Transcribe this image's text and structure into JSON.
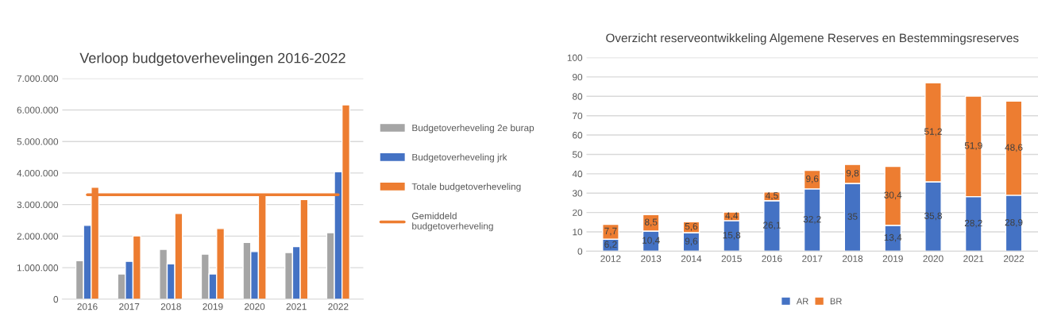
{
  "chart_data": [
    {
      "type": "bar",
      "title": "Verloop budgetoverhevelingen 2016-2022",
      "categories": [
        "2016",
        "2017",
        "2018",
        "2019",
        "2020",
        "2021",
        "2022"
      ],
      "series": [
        {
          "name": "Budgetoverheveling 2e burap",
          "color": "#a5a5a5",
          "values": [
            1220000,
            800000,
            1580000,
            1430000,
            1800000,
            1480000,
            2110000
          ]
        },
        {
          "name": "Budgetoverheveling jrk",
          "color": "#4472c4",
          "values": [
            2340000,
            1200000,
            1120000,
            800000,
            1510000,
            1670000,
            4040000
          ]
        },
        {
          "name": "Totale budgetoverheveling",
          "color": "#ed7d31",
          "values": [
            3550000,
            2010000,
            2720000,
            2240000,
            3320000,
            3160000,
            6160000
          ]
        },
        {
          "name": "Gemiddeld budgetoverheveling",
          "type": "line",
          "color": "#ed7d31",
          "values": [
            3310000,
            3310000,
            3310000,
            3310000,
            3310000,
            3310000,
            3310000
          ]
        }
      ],
      "ylim": [
        0,
        7000000
      ],
      "yticks": [
        {
          "value": 0,
          "label": "0"
        },
        {
          "value": 1000000,
          "label": "1.000.000"
        },
        {
          "value": 2000000,
          "label": "2.000.000"
        },
        {
          "value": 3000000,
          "label": "3.000.000"
        },
        {
          "value": 4000000,
          "label": "4.000.000"
        },
        {
          "value": 5000000,
          "label": "5.000.000"
        },
        {
          "value": 6000000,
          "label": "6.000.000"
        },
        {
          "value": 7000000,
          "label": "7.000.000"
        }
      ],
      "grid": "y",
      "legend": "right"
    },
    {
      "type": "bar",
      "title": "Overzicht reserveontwikkeling Algemene Reserves en Bestemmingsreserves",
      "stacked": true,
      "categories": [
        "2012",
        "2013",
        "2014",
        "2015",
        "2016",
        "2017",
        "2018",
        "2019",
        "2020",
        "2021",
        "2022"
      ],
      "series": [
        {
          "name": "AR",
          "color": "#4472c4",
          "values": [
            6.2,
            10.4,
            9.6,
            15.8,
            26.1,
            32.2,
            35,
            13.4,
            35.8,
            28.2,
            28.9
          ],
          "value_labels": [
            "6,2",
            "10,4",
            "9,6",
            "15,8",
            "26,1",
            "32,2",
            "35",
            "13,4",
            "35,8",
            "28,2",
            "28,9"
          ]
        },
        {
          "name": "BR",
          "color": "#ed7d31",
          "values": [
            7.7,
            8.5,
            5.6,
            4.4,
            4.5,
            9.6,
            9.8,
            30.4,
            51.2,
            51.9,
            48.6
          ],
          "value_labels": [
            "7,7",
            "8,5",
            "5,6",
            "4,4",
            "4,5",
            "9,6",
            "9,8",
            "30,4",
            "51,2",
            "51,9",
            "48,6"
          ]
        }
      ],
      "ylim": [
        0,
        100
      ],
      "yticks": [
        0,
        10,
        20,
        30,
        40,
        50,
        60,
        70,
        80,
        90,
        100
      ],
      "grid": "y",
      "legend": "bottom"
    }
  ]
}
